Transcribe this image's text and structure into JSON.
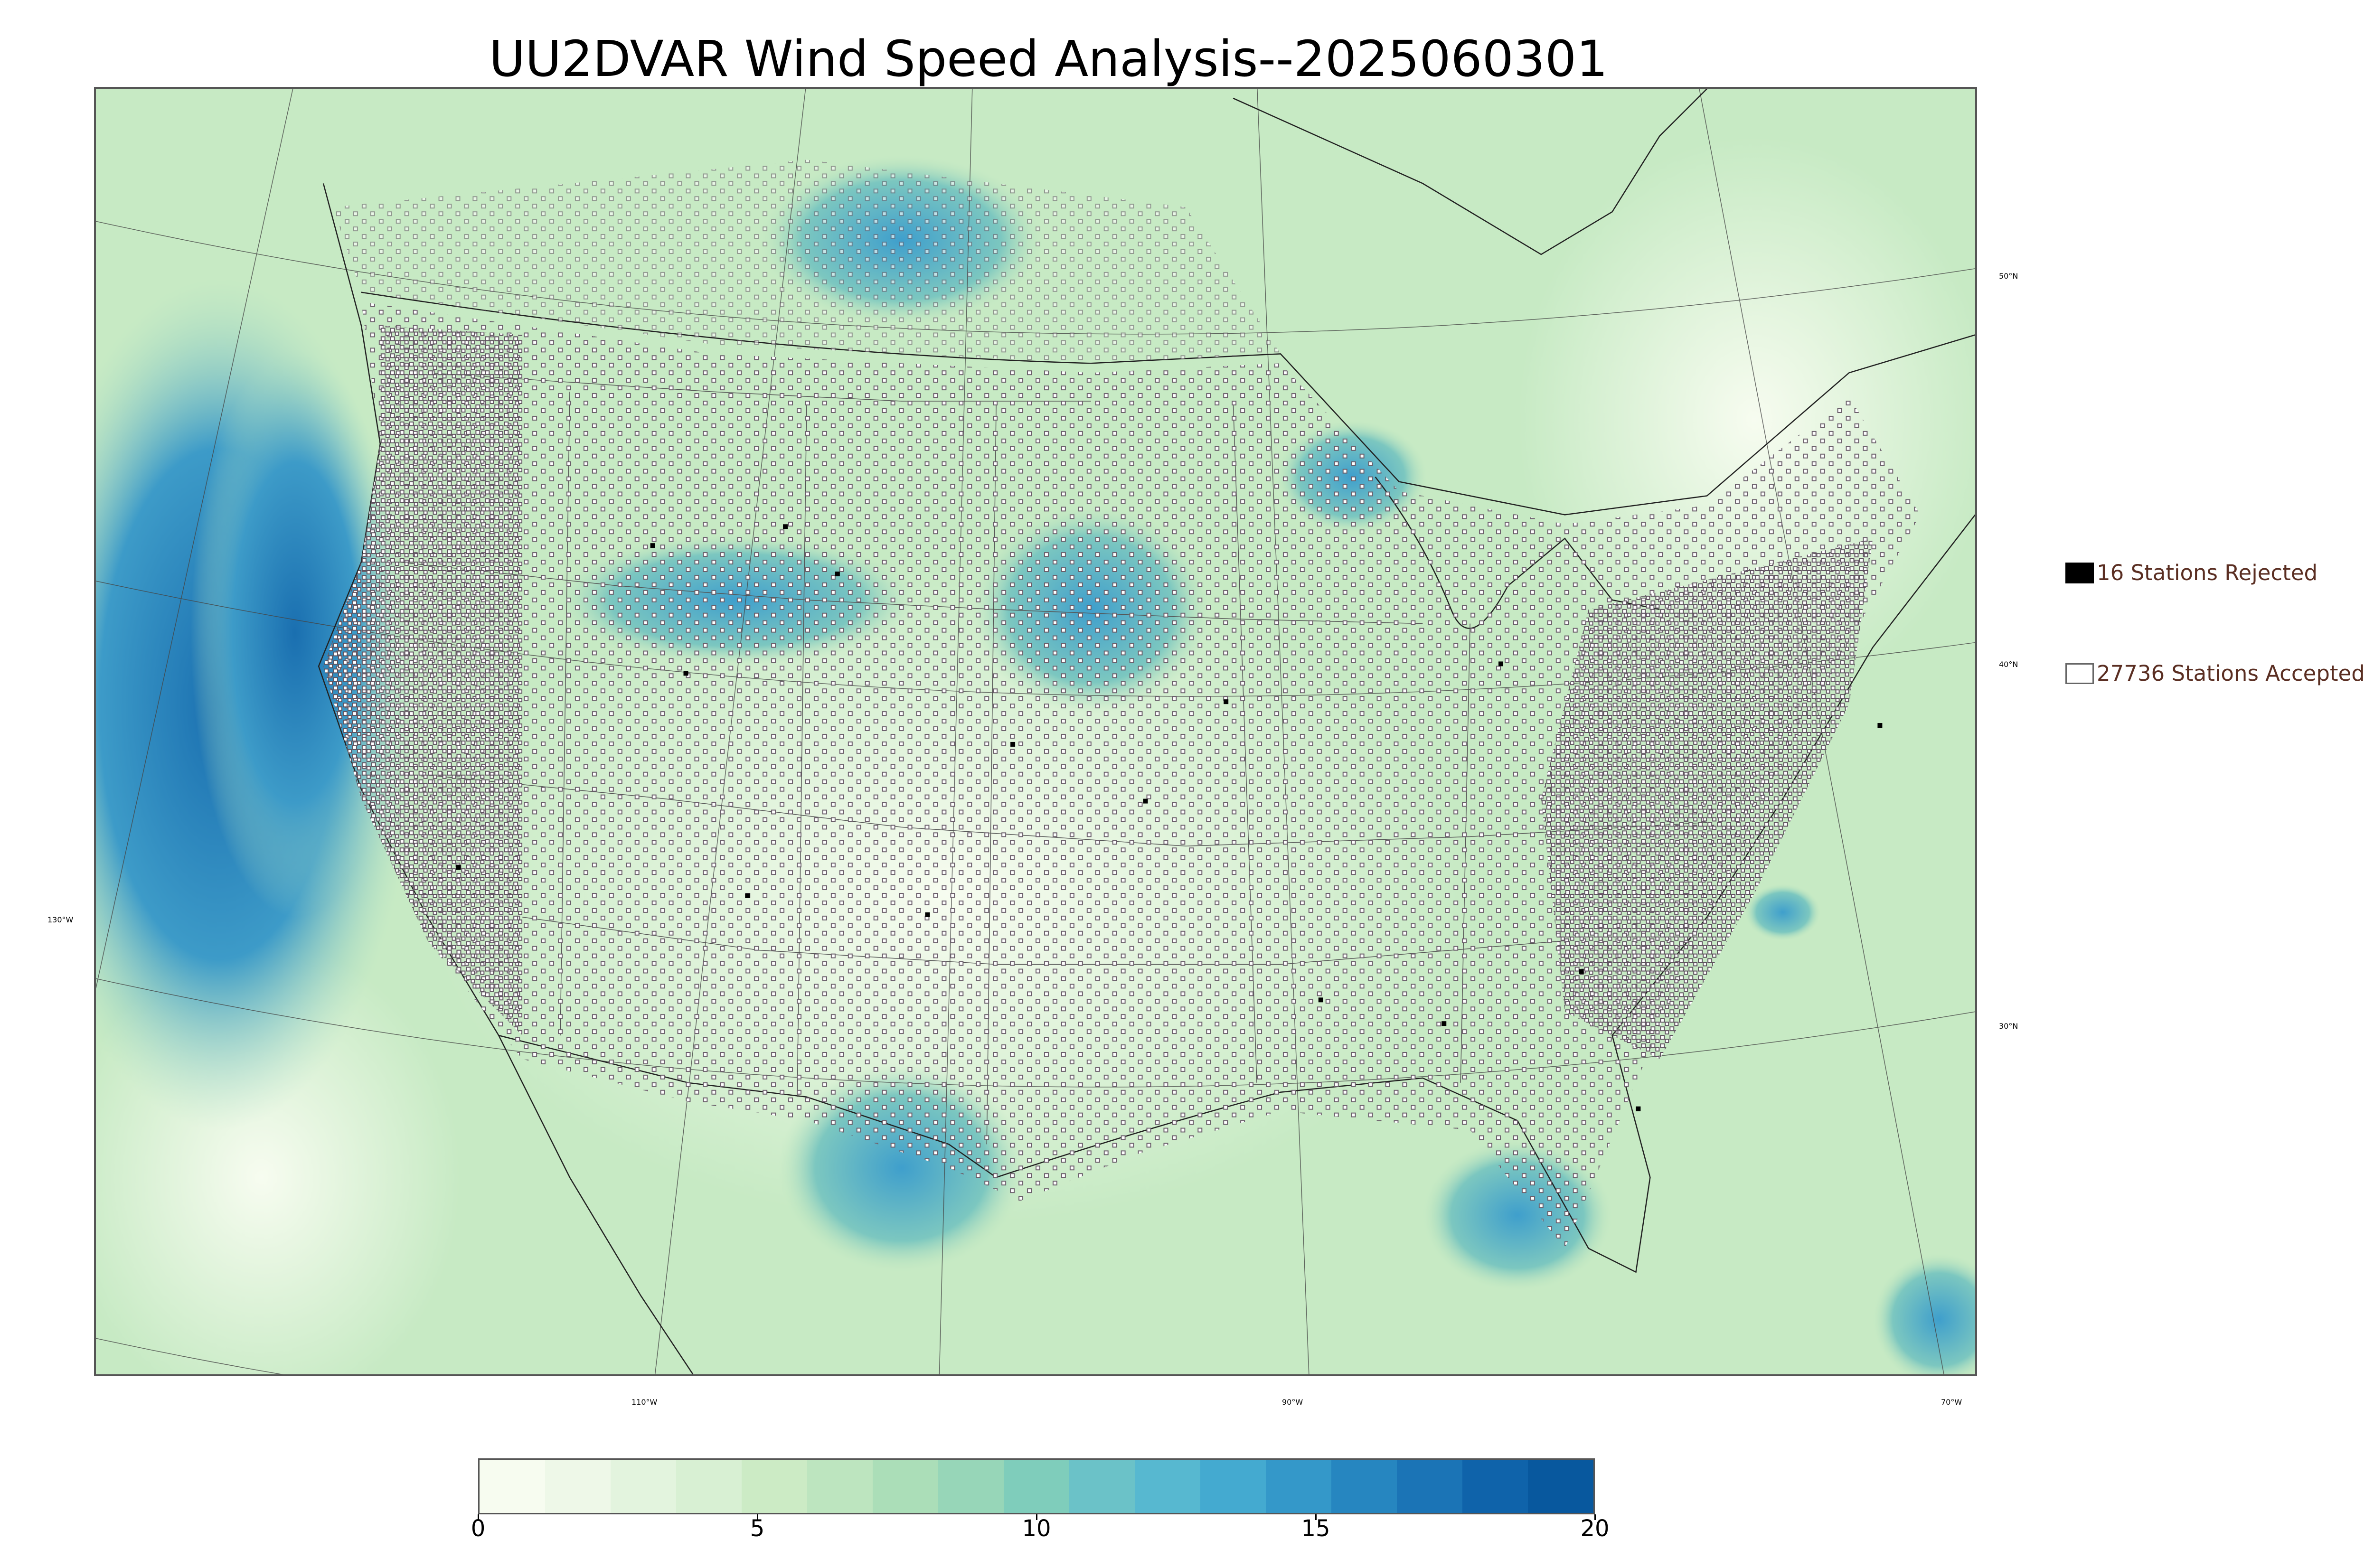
{
  "title": "UU2DVAR Wind Speed Analysis--2025060301",
  "map": {
    "latitude_labels": [
      "50°N",
      "40°N",
      "30°N"
    ],
    "longitude_labels": [
      "130°W",
      "110°W",
      "90°W",
      "70°W"
    ]
  },
  "legend": {
    "rejected": {
      "label": "16 Stations Rejected",
      "color": "#000000"
    },
    "accepted": {
      "label": "27736 Stations Accepted",
      "color": "#ffffff"
    }
  },
  "colorbar": {
    "min": 0,
    "max": 20,
    "tick_labels": [
      "0",
      "5",
      "10",
      "15",
      "20"
    ],
    "tick_values": [
      0,
      5,
      10,
      15,
      20
    ],
    "colors": [
      "#f7fcf0",
      "#eef8e8",
      "#e3f4de",
      "#d8f0d3",
      "#ccebc5",
      "#bde5bf",
      "#abdeb8",
      "#97d6b8",
      "#7fcdbb",
      "#6bc2c8",
      "#57b8d0",
      "#44aad0",
      "#3498c9",
      "#2686c0",
      "#1b74b6",
      "#0f63aa",
      "#08589e"
    ]
  }
}
